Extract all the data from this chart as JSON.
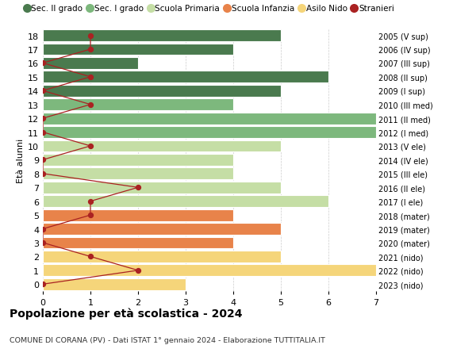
{
  "ages": [
    18,
    17,
    16,
    15,
    14,
    13,
    12,
    11,
    10,
    9,
    8,
    7,
    6,
    5,
    4,
    3,
    2,
    1,
    0
  ],
  "years": [
    "2005 (V sup)",
    "2006 (IV sup)",
    "2007 (III sup)",
    "2008 (II sup)",
    "2009 (I sup)",
    "2010 (III med)",
    "2011 (II med)",
    "2012 (I med)",
    "2013 (V ele)",
    "2014 (IV ele)",
    "2015 (III ele)",
    "2016 (II ele)",
    "2017 (I ele)",
    "2018 (mater)",
    "2019 (mater)",
    "2020 (mater)",
    "2021 (nido)",
    "2022 (nido)",
    "2023 (nido)"
  ],
  "bar_values": [
    5,
    4,
    2,
    6,
    5,
    4,
    7,
    7,
    5,
    4,
    4,
    5,
    6,
    4,
    5,
    4,
    5,
    7,
    3
  ],
  "bar_colors": [
    "#4a7a4e",
    "#4a7a4e",
    "#4a7a4e",
    "#4a7a4e",
    "#4a7a4e",
    "#7db87d",
    "#7db87d",
    "#7db87d",
    "#c5dea5",
    "#c5dea5",
    "#c5dea5",
    "#c5dea5",
    "#c5dea5",
    "#e8834a",
    "#e8834a",
    "#e8834a",
    "#f5d57a",
    "#f5d57a",
    "#f5d57a"
  ],
  "stranieri_values": [
    1,
    1,
    0,
    1,
    0,
    1,
    0,
    0,
    1,
    0,
    0,
    2,
    1,
    1,
    0,
    0,
    1,
    2,
    0
  ],
  "legend_labels": [
    "Sec. II grado",
    "Sec. I grado",
    "Scuola Primaria",
    "Scuola Infanzia",
    "Asilo Nido",
    "Stranieri"
  ],
  "legend_colors": [
    "#4a7a4e",
    "#7db87d",
    "#c5dea5",
    "#e8834a",
    "#f5d57a",
    "#cc2222"
  ],
  "title": "Popolazione per età scolastica - 2024",
  "subtitle": "COMUNE DI CORANA (PV) - Dati ISTAT 1° gennaio 2024 - Elaborazione TUTTITALIA.IT",
  "ylabel_left": "Età alunni",
  "xlim": [
    0,
    7
  ],
  "ylim": [
    -0.5,
    18.5
  ],
  "background_color": "#ffffff",
  "stranieri_color": "#aa2222",
  "grid_color": "#cccccc"
}
